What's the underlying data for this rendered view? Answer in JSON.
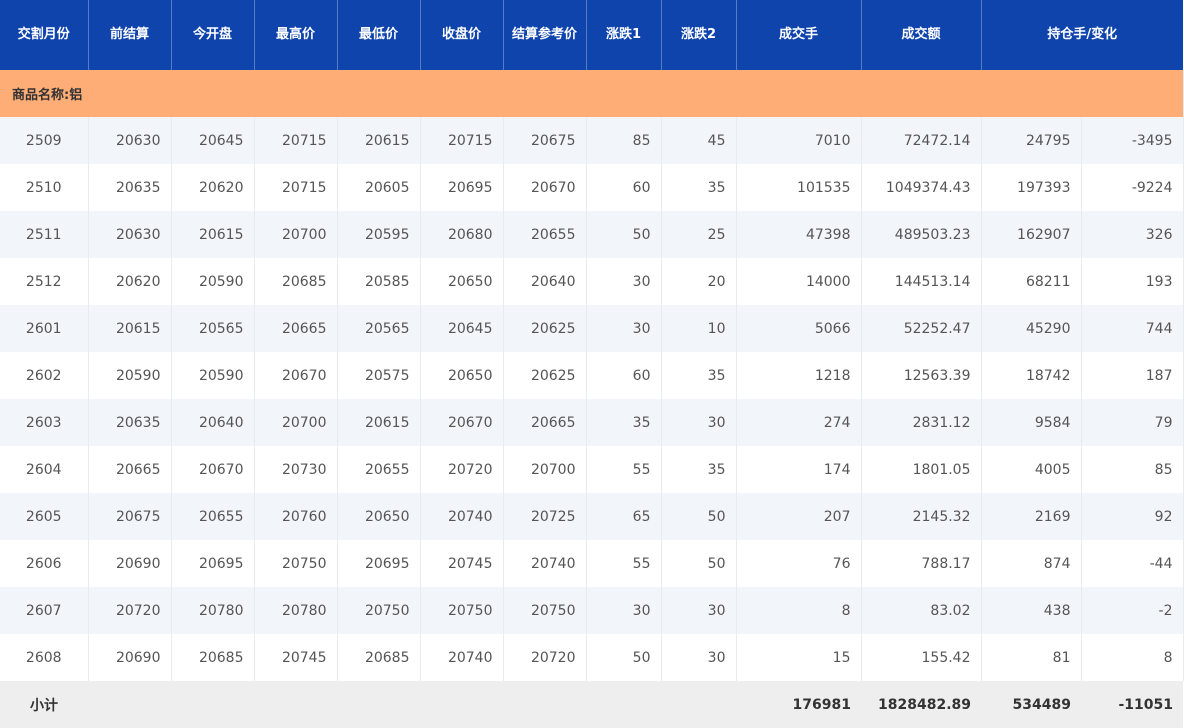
{
  "headers": [
    "交割月份",
    "前结算",
    "今开盘",
    "最高价",
    "最低价",
    "收盘价",
    "结算参考价",
    "涨跌1",
    "涨跌2",
    "成交手",
    "成交额",
    "持仓手/变化"
  ],
  "group_label": "商品名称:铝",
  "rows": [
    [
      "2509",
      "20630",
      "20645",
      "20715",
      "20615",
      "20715",
      "20675",
      "85",
      "45",
      "7010",
      "72472.14",
      "24795",
      "-3495"
    ],
    [
      "2510",
      "20635",
      "20620",
      "20715",
      "20605",
      "20695",
      "20670",
      "60",
      "35",
      "101535",
      "1049374.43",
      "197393",
      "-9224"
    ],
    [
      "2511",
      "20630",
      "20615",
      "20700",
      "20595",
      "20680",
      "20655",
      "50",
      "25",
      "47398",
      "489503.23",
      "162907",
      "326"
    ],
    [
      "2512",
      "20620",
      "20590",
      "20685",
      "20585",
      "20650",
      "20640",
      "30",
      "20",
      "14000",
      "144513.14",
      "68211",
      "193"
    ],
    [
      "2601",
      "20615",
      "20565",
      "20665",
      "20565",
      "20645",
      "20625",
      "30",
      "10",
      "5066",
      "52252.47",
      "45290",
      "744"
    ],
    [
      "2602",
      "20590",
      "20590",
      "20670",
      "20575",
      "20650",
      "20625",
      "60",
      "35",
      "1218",
      "12563.39",
      "18742",
      "187"
    ],
    [
      "2603",
      "20635",
      "20640",
      "20700",
      "20615",
      "20670",
      "20665",
      "35",
      "30",
      "274",
      "2831.12",
      "9584",
      "79"
    ],
    [
      "2604",
      "20665",
      "20670",
      "20730",
      "20655",
      "20720",
      "20700",
      "55",
      "35",
      "174",
      "1801.05",
      "4005",
      "85"
    ],
    [
      "2605",
      "20675",
      "20655",
      "20760",
      "20650",
      "20740",
      "20725",
      "65",
      "50",
      "207",
      "2145.32",
      "2169",
      "92"
    ],
    [
      "2606",
      "20690",
      "20695",
      "20750",
      "20695",
      "20745",
      "20740",
      "55",
      "50",
      "76",
      "788.17",
      "874",
      "-44"
    ],
    [
      "2607",
      "20720",
      "20780",
      "20780",
      "20750",
      "20750",
      "20750",
      "30",
      "30",
      "8",
      "83.02",
      "438",
      "-2"
    ],
    [
      "2608",
      "20690",
      "20685",
      "20745",
      "20685",
      "20740",
      "20720",
      "50",
      "30",
      "15",
      "155.42",
      "81",
      "8"
    ]
  ],
  "total": {
    "label": "小计",
    "volume": "176981",
    "turnover": "1828482.89",
    "open_interest": "534489",
    "oi_change": "-11051"
  },
  "colors": {
    "header_bg": "#0f44ad",
    "group_bg": "#ffad76",
    "stripe_bg": "#f2f6fb",
    "total_bg": "#eeeeee"
  }
}
